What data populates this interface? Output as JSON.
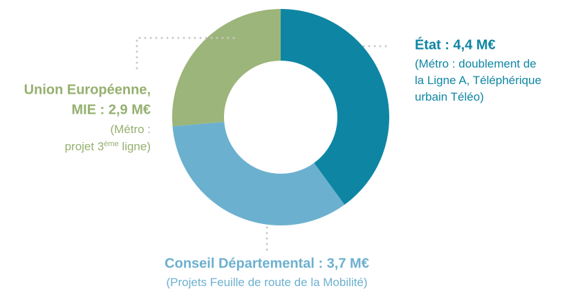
{
  "chart_data": {
    "type": "donut",
    "values": [
      4.4,
      3.7,
      2.9
    ],
    "value_labels": [
      [
        "État : 4,4 M€"
      ],
      [
        "Conseil Départemental : 3,7 M€"
      ],
      [
        "Union Européenne,",
        "MIE : 2,9 M€"
      ]
    ],
    "descriptions": [
      [
        [
          "(Métro : doublement de"
        ],
        [
          "la Ligne A, Téléphérique"
        ],
        [
          "urbain Téléo)"
        ]
      ],
      [
        [
          "(Projets Feuille de route de la Mobilité)"
        ]
      ],
      [
        [
          "(Métro :"
        ],
        [
          "projet 3",
          "ème",
          " ligne)"
        ]
      ]
    ],
    "colors": [
      "#0e86a3",
      "#6cb0cf",
      "#9cb57a"
    ]
  }
}
